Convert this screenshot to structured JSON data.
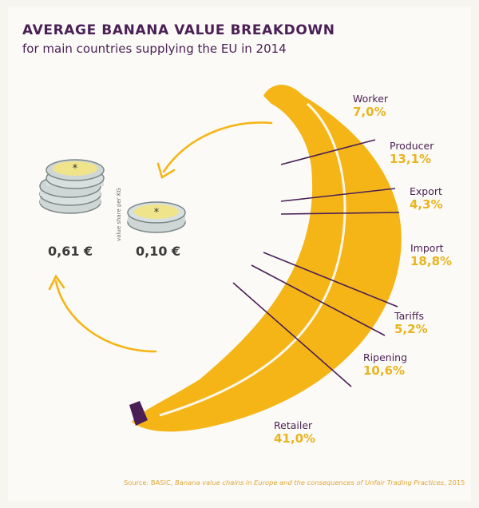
{
  "header": {
    "title": "AVERAGE BANANA VALUE BREAKDOWN",
    "subtitle": "for main countries supplying the EU in 2014"
  },
  "coins": {
    "stack_value": "0,61 €",
    "single_value": "0,10 €",
    "axis_note": "value share per KG"
  },
  "chart_data": {
    "type": "pie",
    "title": "AVERAGE BANANA VALUE BREAKDOWN",
    "subtitle": "for main countries supplying the EU in 2014",
    "unit": "%",
    "categories": [
      "Worker",
      "Producer",
      "Export",
      "Import",
      "Tariffs",
      "Ripening",
      "Retailer"
    ],
    "values": [
      7.0,
      13.1,
      4.3,
      18.8,
      5.2,
      10.6,
      41.0
    ],
    "labels": [
      "7,0%",
      "13,1%",
      "4,3%",
      "18,8%",
      "5,2%",
      "10,6%",
      "41,0%"
    ]
  },
  "source": {
    "prefix": "Source: BASIC, ",
    "title": "Banana value chains in Europe and the consequences of Unfair Trading Practices",
    "suffix": ", 2015"
  },
  "colors": {
    "banana": "#f5b517",
    "banana_stripe": "#fbf6ea",
    "accent_text": "#e8b420",
    "label_text": "#4a1f55",
    "divider": "#4a1f55",
    "tip": "#4a1f55",
    "arrow": "#f5b517"
  }
}
